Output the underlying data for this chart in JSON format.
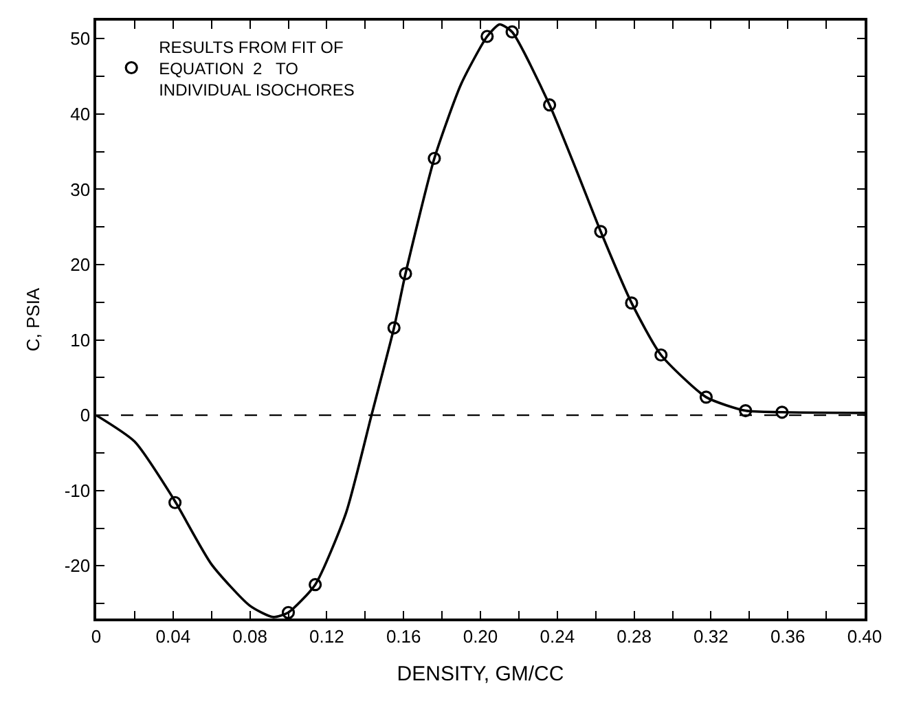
{
  "chart_data": {
    "type": "line",
    "xlabel": "DENSITY, GM/CC",
    "ylabel": "C, PSIA",
    "xlim": [
      0,
      0.4
    ],
    "ylim": [
      -27,
      52.4
    ],
    "xticks": [
      0,
      {
        "value": 0.02,
        "label": null
      },
      0.04,
      {
        "value": 0.06,
        "label": null
      },
      0.08,
      {
        "value": 0.1,
        "label": null
      },
      0.12,
      {
        "value": 0.14,
        "label": null
      },
      0.16,
      {
        "value": 0.18,
        "label": null
      },
      {
        "value": 0.2,
        "label": "0.20"
      },
      {
        "value": 0.22,
        "label": null
      },
      0.24,
      {
        "value": 0.26,
        "label": null
      },
      0.28,
      {
        "value": 0.3,
        "label": null
      },
      0.32,
      {
        "value": 0.34,
        "label": null
      },
      0.36,
      {
        "value": 0.38,
        "label": null
      },
      {
        "value": 0.4,
        "label": "0.40"
      }
    ],
    "yticks": [
      {
        "value": -25,
        "label": null
      },
      -20,
      {
        "value": -15,
        "label": null
      },
      -10,
      {
        "value": -5,
        "label": null
      },
      0,
      {
        "value": 5,
        "label": null
      },
      10,
      {
        "value": 15,
        "label": null
      },
      20,
      {
        "value": 25,
        "label": null
      },
      30,
      {
        "value": 35,
        "label": null
      },
      40,
      {
        "value": 45,
        "label": null
      },
      50
    ],
    "grid": false,
    "legend": "top left",
    "ref_lines": [
      {
        "axis": "y",
        "value": 0,
        "color": "#000000",
        "line_style": "dashed"
      }
    ],
    "series": [
      {
        "color": "#000000",
        "marker": "none",
        "line_style": "solid",
        "x": [
          0,
          0.02,
          0.04,
          0.06,
          0.08,
          0.092,
          0.1,
          0.114,
          0.13,
          0.1433,
          0.155,
          0.161,
          0.176,
          0.19,
          0.2035,
          0.21,
          0.2165,
          0.236,
          0.25,
          0.2626,
          0.2787,
          0.294,
          0.3175,
          0.338,
          0.357,
          0.4
        ],
        "values": [
          0,
          -3.5,
          -11,
          -19.8,
          -25.3,
          -26.8,
          -26.2,
          -22.5,
          -13,
          0,
          11.6,
          18.8,
          34.1,
          44,
          50.3,
          51.9,
          50.9,
          41.2,
          32.5,
          24.4,
          14.9,
          8,
          2.4,
          0.6,
          0.4,
          0.3
        ]
      },
      {
        "type": "scatter",
        "name": "RESULTS FROM FIT OF\nEQUATION  2   TO\nINDIVIDUAL ISOCHORES",
        "color": "#000000",
        "marker": "circle",
        "x": [
          0.041,
          0.1,
          0.114,
          0.155,
          0.161,
          0.176,
          0.2035,
          0.2165,
          0.236,
          0.2626,
          0.2787,
          0.294,
          0.3175,
          0.338,
          0.357
        ],
        "values": [
          -11.6,
          -26.2,
          -22.5,
          11.6,
          18.8,
          34.1,
          50.3,
          50.9,
          41.2,
          24.4,
          14.9,
          8,
          2.4,
          0.6,
          0.4
        ]
      }
    ]
  }
}
